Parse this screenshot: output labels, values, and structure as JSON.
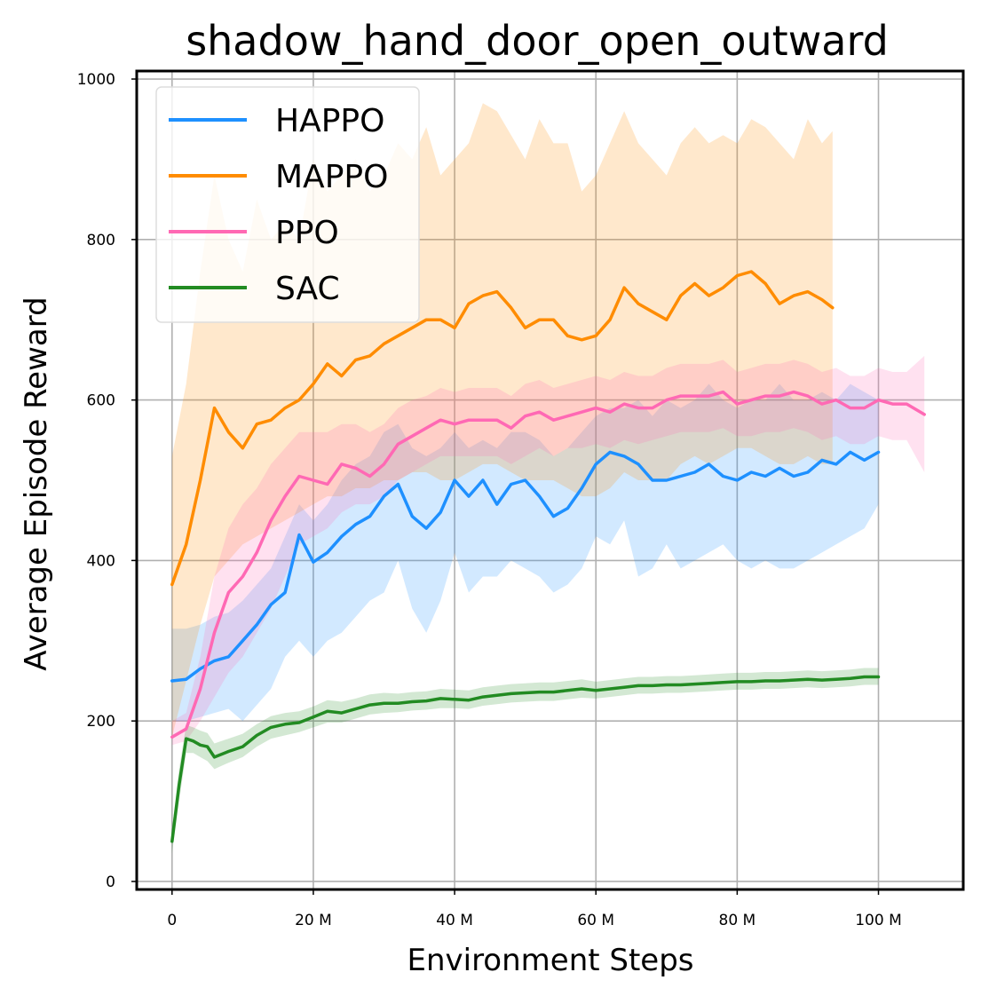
{
  "chart_data": {
    "type": "line",
    "title": "shadow_hand_door_open_outward",
    "xlabel": "Environment Steps",
    "ylabel": "Average Episode Reward",
    "xlim": [
      -5,
      112
    ],
    "ylim": [
      -10,
      1010
    ],
    "x_ticks": [
      0,
      20,
      40,
      60,
      80,
      100
    ],
    "x_tick_labels": [
      "0",
      "20 M",
      "40 M",
      "60 M",
      "80 M",
      "100 M"
    ],
    "y_ticks": [
      0,
      200,
      400,
      600,
      800,
      1000
    ],
    "y_tick_labels": [
      "0",
      "200",
      "400",
      "600",
      "800",
      "1000"
    ],
    "grid": true,
    "legend_position": "upper-left",
    "series": [
      {
        "name": "HAPPO",
        "color": "#1e90ff",
        "x": [
          0,
          2,
          4,
          6,
          8,
          10,
          12,
          14,
          16,
          18,
          20,
          22,
          24,
          26,
          28,
          30,
          32,
          34,
          36,
          38,
          40,
          42,
          44,
          46,
          48,
          50,
          52,
          54,
          56,
          58,
          60,
          62,
          64,
          66,
          68,
          70,
          72,
          74,
          76,
          78,
          80,
          82,
          84,
          86,
          88,
          90,
          92,
          94,
          96,
          98,
          100
        ],
        "y": [
          250,
          252,
          265,
          275,
          280,
          300,
          320,
          345,
          360,
          432,
          398,
          410,
          430,
          445,
          455,
          480,
          495,
          455,
          440,
          460,
          500,
          480,
          500,
          470,
          495,
          500,
          480,
          455,
          465,
          490,
          520,
          535,
          530,
          520,
          500,
          500,
          505,
          510,
          520,
          505,
          500,
          510,
          505,
          515,
          505,
          510,
          525,
          520,
          535,
          525,
          535
        ],
        "lower": [
          200,
          200,
          205,
          210,
          215,
          200,
          220,
          240,
          280,
          300,
          280,
          300,
          310,
          330,
          350,
          360,
          400,
          340,
          310,
          350,
          410,
          360,
          380,
          380,
          400,
          390,
          380,
          360,
          370,
          390,
          430,
          420,
          450,
          380,
          390,
          420,
          390,
          400,
          410,
          420,
          400,
          390,
          400,
          390,
          390,
          400,
          410,
          420,
          430,
          440,
          470
        ],
        "upper": [
          315,
          315,
          320,
          330,
          335,
          350,
          370,
          390,
          430,
          470,
          450,
          470,
          500,
          520,
          530,
          560,
          570,
          540,
          530,
          540,
          560,
          540,
          550,
          540,
          560,
          560,
          550,
          530,
          540,
          560,
          580,
          590,
          590,
          600,
          580,
          600,
          590,
          600,
          620,
          600,
          590,
          600,
          600,
          620,
          600,
          600,
          610,
          600,
          620,
          610,
          600
        ]
      },
      {
        "name": "MAPPO",
        "color": "#ff8c00",
        "x": [
          0,
          2,
          4,
          6,
          8,
          10,
          12,
          14,
          16,
          18,
          20,
          22,
          24,
          26,
          28,
          30,
          32,
          34,
          36,
          38,
          40,
          42,
          44,
          46,
          48,
          50,
          52,
          54,
          56,
          58,
          60,
          62,
          64,
          66,
          68,
          70,
          72,
          74,
          76,
          78,
          80,
          82,
          84,
          86,
          88,
          90,
          92,
          93.5
        ],
        "y": [
          370,
          420,
          500,
          590,
          560,
          540,
          570,
          575,
          590,
          600,
          620,
          645,
          630,
          650,
          655,
          670,
          680,
          690,
          700,
          700,
          690,
          720,
          730,
          735,
          715,
          690,
          700,
          700,
          680,
          675,
          680,
          700,
          740,
          720,
          710,
          700,
          730,
          745,
          730,
          740,
          755,
          760,
          745,
          720,
          730,
          735,
          725,
          715
        ],
        "lower": [
          180,
          250,
          320,
          380,
          400,
          420,
          430,
          440,
          450,
          460,
          470,
          480,
          480,
          490,
          490,
          500,
          500,
          510,
          510,
          500,
          500,
          510,
          520,
          520,
          510,
          500,
          500,
          500,
          490,
          480,
          480,
          490,
          510,
          500,
          500,
          500,
          520,
          530,
          520,
          530,
          540,
          540,
          530,
          520,
          520,
          530,
          520,
          520
        ],
        "upper": [
          530,
          620,
          760,
          880,
          800,
          760,
          850,
          800,
          820,
          800,
          900,
          860,
          880,
          900,
          860,
          880,
          920,
          900,
          940,
          880,
          900,
          920,
          970,
          960,
          930,
          900,
          950,
          920,
          920,
          860,
          880,
          920,
          960,
          920,
          900,
          880,
          920,
          940,
          920,
          930,
          920,
          950,
          940,
          920,
          900,
          950,
          920,
          935
        ]
      },
      {
        "name": "PPO",
        "color": "#ff69b4",
        "x": [
          0,
          2,
          4,
          6,
          8,
          10,
          12,
          14,
          16,
          18,
          20,
          22,
          24,
          26,
          28,
          30,
          32,
          34,
          36,
          38,
          40,
          42,
          44,
          46,
          48,
          50,
          52,
          54,
          56,
          58,
          60,
          62,
          64,
          66,
          68,
          70,
          72,
          74,
          76,
          78,
          80,
          82,
          84,
          86,
          88,
          90,
          92,
          94,
          96,
          98,
          100,
          102,
          104,
          106.5
        ],
        "y": [
          180,
          190,
          240,
          310,
          360,
          380,
          410,
          450,
          480,
          505,
          500,
          495,
          520,
          515,
          505,
          520,
          545,
          555,
          565,
          575,
          570,
          575,
          575,
          575,
          565,
          580,
          585,
          575,
          580,
          585,
          590,
          585,
          595,
          590,
          590,
          600,
          605,
          605,
          605,
          610,
          595,
          600,
          605,
          605,
          610,
          605,
          595,
          600,
          590,
          590,
          600,
          595,
          595,
          582
        ],
        "lower": [
          170,
          175,
          200,
          230,
          260,
          280,
          310,
          340,
          380,
          420,
          430,
          440,
          460,
          470,
          470,
          480,
          500,
          510,
          520,
          530,
          530,
          530,
          530,
          530,
          520,
          530,
          540,
          530,
          540,
          540,
          545,
          540,
          550,
          545,
          550,
          555,
          560,
          560,
          560,
          565,
          555,
          555,
          560,
          560,
          565,
          560,
          550,
          555,
          545,
          545,
          555,
          550,
          550,
          510
        ],
        "upper": [
          200,
          210,
          280,
          380,
          440,
          470,
          490,
          520,
          540,
          560,
          560,
          560,
          570,
          570,
          560,
          570,
          590,
          600,
          605,
          615,
          610,
          615,
          615,
          615,
          605,
          620,
          625,
          615,
          620,
          625,
          630,
          625,
          635,
          630,
          630,
          640,
          645,
          645,
          645,
          650,
          635,
          640,
          645,
          645,
          650,
          645,
          635,
          640,
          630,
          630,
          640,
          635,
          635,
          655
        ]
      },
      {
        "name": "SAC",
        "color": "#228b22",
        "x": [
          0,
          1,
          2,
          3,
          4,
          5,
          6,
          8,
          10,
          12,
          14,
          16,
          18,
          20,
          22,
          24,
          26,
          28,
          30,
          32,
          34,
          36,
          38,
          40,
          42,
          44,
          46,
          48,
          50,
          52,
          54,
          56,
          58,
          60,
          62,
          64,
          66,
          68,
          70,
          72,
          74,
          76,
          78,
          80,
          82,
          84,
          86,
          88,
          90,
          92,
          94,
          96,
          98,
          100
        ],
        "y": [
          50,
          120,
          178,
          175,
          170,
          168,
          155,
          162,
          168,
          182,
          192,
          196,
          198,
          205,
          212,
          210,
          215,
          220,
          222,
          222,
          224,
          225,
          228,
          227,
          226,
          230,
          232,
          234,
          235,
          236,
          236,
          238,
          240,
          238,
          240,
          242,
          244,
          244,
          245,
          245,
          246,
          247,
          248,
          249,
          249,
          250,
          250,
          251,
          252,
          251,
          252,
          253,
          255,
          255
        ],
        "lower": [
          35,
          100,
          160,
          160,
          155,
          150,
          140,
          148,
          155,
          168,
          178,
          182,
          186,
          192,
          198,
          198,
          203,
          208,
          210,
          211,
          213,
          214,
          216,
          216,
          215,
          219,
          221,
          223,
          224,
          225,
          225,
          227,
          229,
          228,
          230,
          232,
          234,
          234,
          235,
          235,
          236,
          237,
          238,
          239,
          239,
          240,
          240,
          241,
          242,
          241,
          242,
          243,
          245,
          245
        ],
        "upper": [
          65,
          140,
          195,
          192,
          188,
          185,
          172,
          178,
          184,
          196,
          206,
          210,
          212,
          218,
          226,
          224,
          228,
          233,
          235,
          234,
          236,
          237,
          240,
          239,
          238,
          242,
          244,
          246,
          247,
          248,
          248,
          250,
          252,
          249,
          251,
          253,
          255,
          255,
          256,
          256,
          257,
          258,
          259,
          260,
          260,
          261,
          261,
          262,
          263,
          262,
          263,
          264,
          266,
          266
        ]
      }
    ]
  }
}
